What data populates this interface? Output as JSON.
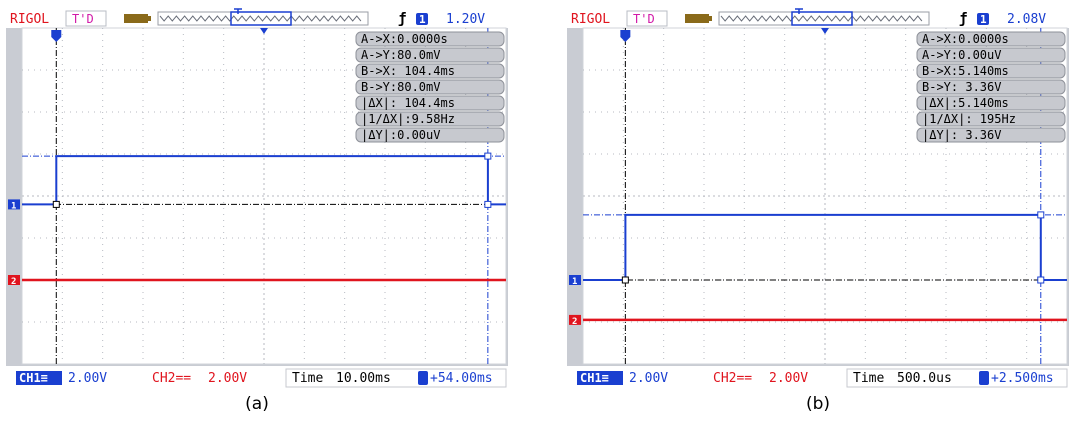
{
  "scopes": [
    {
      "id": "a",
      "panel_label": "(a)",
      "header": {
        "brand": "RIGOL",
        "status": "T'D",
        "trigger_edge_glyph": "ƒ",
        "trigger_channel": "1",
        "trigger_level": "1.20V"
      },
      "cursors": [
        "A->X:0.0000s",
        "A->Y:80.0mV",
        "B->X: 104.4ms",
        "B->Y:80.0mV",
        "|ΔX|: 104.4ms",
        "|1/ΔX|:9.58Hz",
        "|ΔY|:0.00uV"
      ],
      "footer": {
        "ch1_tag": "CH1",
        "ch1_scale": "2.00V",
        "ch2_tag": "CH2",
        "ch2_scale": "2.00V",
        "time_label": "Time",
        "time_scale": "10.00ms",
        "trigger_offset": "+54.00ms"
      },
      "colors": {
        "ch1": "#1a3fd0",
        "ch2": "#e0141e",
        "cursor": "#000000"
      }
    },
    {
      "id": "b",
      "panel_label": "(b)",
      "header": {
        "brand": "RIGOL",
        "status": "T'D",
        "trigger_edge_glyph": "ƒ",
        "trigger_channel": "1",
        "trigger_level": "2.08V"
      },
      "cursors": [
        "A->X:0.0000s",
        "A->Y:0.00uV",
        "B->X:5.140ms",
        "B->Y: 3.36V",
        "|ΔX|:5.140ms",
        "|1/ΔX|: 195Hz",
        "|ΔY|: 3.36V"
      ],
      "footer": {
        "ch1_tag": "CH1",
        "ch1_scale": "2.00V",
        "ch2_tag": "CH2",
        "ch2_scale": "2.00V",
        "time_label": "Time",
        "time_scale": "500.0us",
        "trigger_offset": "+2.500ms"
      },
      "colors": {
        "ch1": "#1a3fd0",
        "ch2": "#e0141e",
        "cursor": "#000000"
      }
    }
  ],
  "chart_data": [
    {
      "type": "line",
      "title": "(a)",
      "time_per_div_ms": 10,
      "volts_per_div": 2,
      "x_range_divisions": [
        0,
        12
      ],
      "series": [
        {
          "name": "CH1",
          "x_div": [
            0,
            0.85,
            0.85,
            11.55,
            11.55,
            12
          ],
          "y_div": [
            3.8,
            3.8,
            4.95,
            4.95,
            3.8,
            3.8
          ]
        },
        {
          "name": "CH2",
          "x_div": [
            0,
            12
          ],
          "y_div": [
            2.0,
            2.0
          ]
        }
      ],
      "cursor_x_div": [
        0.85,
        11.55
      ]
    },
    {
      "type": "line",
      "title": "(b)",
      "time_per_div_ms": 0.5,
      "volts_per_div": 2,
      "x_range_divisions": [
        0,
        12
      ],
      "series": [
        {
          "name": "CH1",
          "x_div": [
            0,
            1.05,
            1.05,
            11.35,
            11.35,
            12
          ],
          "y_div": [
            2.0,
            2.0,
            3.55,
            3.55,
            2.0,
            2.0
          ]
        },
        {
          "name": "CH2",
          "x_div": [
            0,
            12
          ],
          "y_div": [
            1.05,
            1.05
          ]
        }
      ],
      "cursor_x_div": [
        1.05,
        11.35
      ]
    }
  ]
}
